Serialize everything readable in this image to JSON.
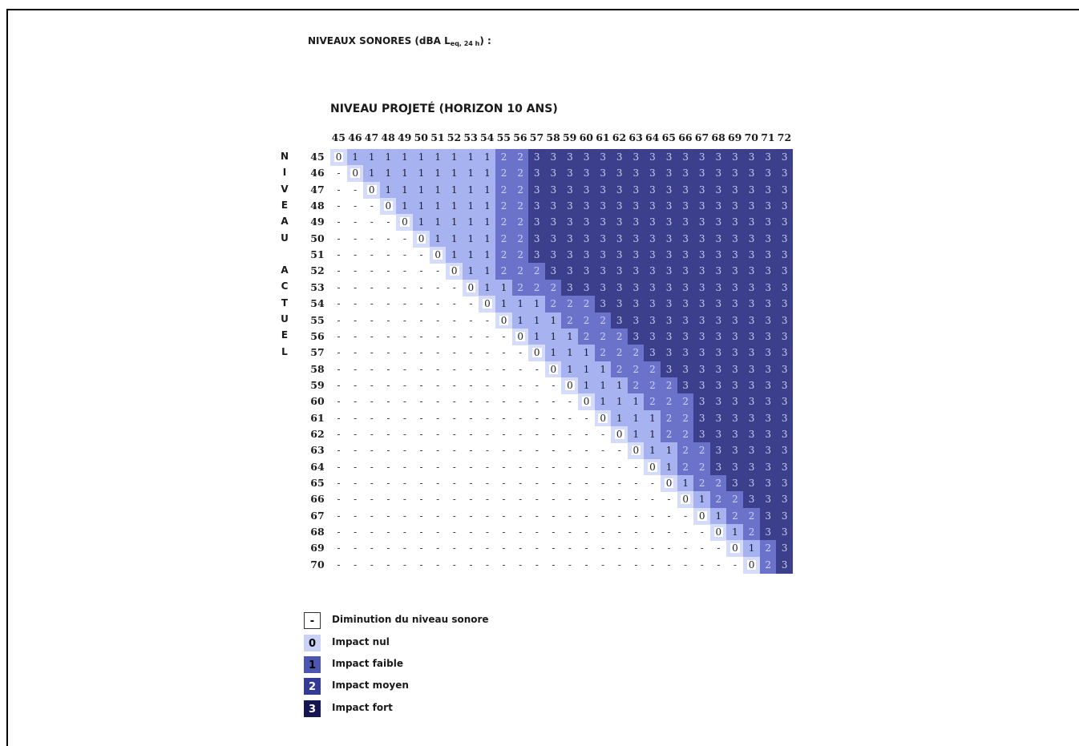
{
  "header": {
    "title_main": "NIVEAUX SONORES (dBA L",
    "title_sub": "eq, 24 h",
    "title_end": ") :",
    "subtitle": "NIVEAU PROJETÉ (HORIZON 10 ANS)",
    "vertical_label": [
      "N",
      "I",
      "V",
      "E",
      "A",
      "U",
      "",
      "A",
      "C",
      "T",
      "U",
      "E",
      "L"
    ]
  },
  "chart_data": {
    "type": "heatmap",
    "title": "NIVEAU PROJETÉ (HORIZON 10 ANS)",
    "xlabel": "NIVEAU PROJETÉ (HORIZON 10 ANS)",
    "ylabel": "NIVEAU ACTUEL",
    "x": [
      45,
      46,
      47,
      48,
      49,
      50,
      51,
      52,
      53,
      54,
      55,
      56,
      57,
      58,
      59,
      60,
      61,
      62,
      63,
      64,
      65,
      66,
      67,
      68,
      69,
      70,
      71,
      72
    ],
    "y": [
      45,
      46,
      47,
      48,
      49,
      50,
      51,
      52,
      53,
      54,
      55,
      56,
      57,
      58,
      59,
      60,
      61,
      62,
      63,
      64,
      65,
      66,
      67,
      68,
      69,
      70
    ],
    "rows": [
      "0111111111223333333333333333",
      "-011111111223333333333333333",
      "--01111111223333333333333333",
      "---0111111223333333333333333",
      "----011111223333333333333333",
      "-----01111223333333333333333",
      "------0111223333333333333333",
      "-------011222333333333333333",
      "--------01122233333333333333",
      "---------0111222333333333333",
      "----------011122233333333333",
      "-----------01112223333333333",
      "------------0111222333333333",
      "-------------011122233333333",
      "--------------01112223333333",
      "---------------0111222333333",
      "----------------011122333333",
      "-----------------01122333333",
      "------------------0112233333",
      "-------------------012233333",
      "--------------------01223333",
      "---------------------0122333",
      "----------------------012233",
      "-----------------------01233",
      "------------------------0123",
      "-------------------------023"
    ],
    "legend": [
      {
        "code": "-",
        "label": "Diminution du niveau sonore"
      },
      {
        "code": "0",
        "label": "Impact nul"
      },
      {
        "code": "1",
        "label": "Impact faible"
      },
      {
        "code": "2",
        "label": "Impact moyen"
      },
      {
        "code": "3",
        "label": "Impact fort"
      }
    ],
    "colors": {
      "0": "#d5dcfb",
      "1": "#a6b3f0",
      "2": "#6a72c9",
      "3": "#3c3f8c"
    }
  },
  "legend_colors": {
    "-": {
      "bg": "#ffffff",
      "fg": "#000000"
    },
    "0": {
      "bg": "#c9d1f7",
      "fg": "#000000"
    },
    "1": {
      "bg": "#4d55b3",
      "fg": "#000000"
    },
    "2": {
      "bg": "#343a9a",
      "fg": "#ffffff"
    },
    "3": {
      "bg": "#141552",
      "fg": "#ffffff"
    }
  }
}
